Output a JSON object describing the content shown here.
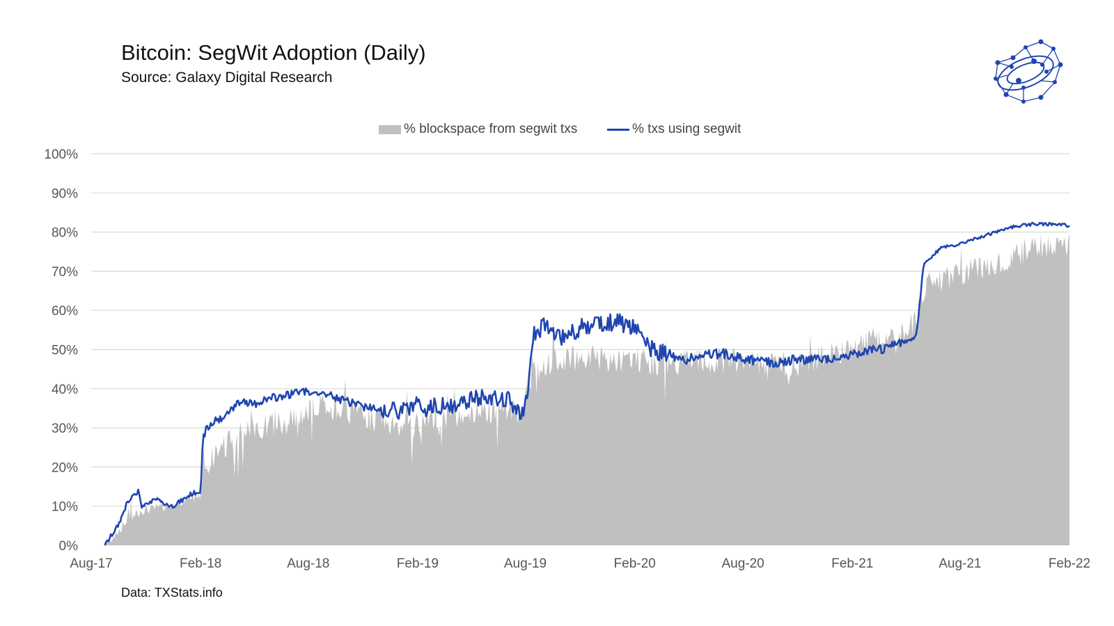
{
  "header": {
    "title": "Bitcoin: SegWit Adoption (Daily)",
    "subtitle": "Source: Galaxy Digital Research"
  },
  "footer": {
    "note": "Data: TXStats.info"
  },
  "logo": {
    "icon": "galaxy-network-logo-icon",
    "color": "#1f45b0"
  },
  "colors": {
    "area": "#c0c0c0",
    "line": "#1f45b0",
    "grid": "#d9d9d9",
    "tick_text": "#555555"
  },
  "chart_data": {
    "type": "area",
    "title": "Bitcoin: SegWit Adoption (Daily)",
    "subtitle": "Source: Galaxy Digital Research",
    "xlabel": "",
    "ylabel": "",
    "ylim": [
      0,
      100
    ],
    "y_unit": "%",
    "y_ticks": [
      "0%",
      "10%",
      "20%",
      "30%",
      "40%",
      "50%",
      "60%",
      "70%",
      "80%",
      "90%",
      "100%"
    ],
    "x_ticks": [
      "Aug-17",
      "Feb-18",
      "Aug-18",
      "Feb-19",
      "Aug-19",
      "Feb-20",
      "Aug-20",
      "Feb-21",
      "Aug-21",
      "Feb-22"
    ],
    "grid": true,
    "legend_position": "top-center",
    "x": [
      "2017-08-24",
      "2017-09-15",
      "2017-10-01",
      "2017-10-20",
      "2017-10-25",
      "2017-11-01",
      "2017-11-20",
      "2017-12-15",
      "2018-01-01",
      "2018-01-15",
      "2018-02-01",
      "2018-02-05",
      "2018-02-10",
      "2018-02-20",
      "2018-03-01",
      "2018-03-15",
      "2018-04-01",
      "2018-04-15",
      "2018-05-01",
      "2018-05-15",
      "2018-06-01",
      "2018-07-01",
      "2018-08-01",
      "2018-08-15",
      "2018-09-01",
      "2018-10-01",
      "2018-11-01",
      "2018-12-01",
      "2019-01-01",
      "2019-01-15",
      "2019-02-01",
      "2019-02-15",
      "2019-03-01",
      "2019-04-01",
      "2019-05-01",
      "2019-06-01",
      "2019-07-01",
      "2019-07-20",
      "2019-08-01",
      "2019-08-15",
      "2019-09-01",
      "2019-10-01",
      "2019-11-01",
      "2019-12-01",
      "2020-01-01",
      "2020-02-01",
      "2020-03-01",
      "2020-04-01",
      "2020-05-01",
      "2020-06-01",
      "2020-07-01",
      "2020-08-01",
      "2020-09-01",
      "2020-10-01",
      "2020-11-01",
      "2020-12-01",
      "2021-01-01",
      "2021-02-01",
      "2021-03-01",
      "2021-04-01",
      "2021-05-01",
      "2021-05-20",
      "2021-06-01",
      "2021-07-01",
      "2021-08-01",
      "2021-09-01",
      "2021-10-01",
      "2021-11-01",
      "2021-12-01",
      "2022-01-01",
      "2022-01-20",
      "2022-02-01"
    ],
    "series": [
      {
        "name": "% blockspace from segwit txs",
        "style": "area",
        "values": [
          0.3,
          3.5,
          6.5,
          8.5,
          9.0,
          9.0,
          9.5,
          10.5,
          11.0,
          12.0,
          13.0,
          18.0,
          20.0,
          22.0,
          24.0,
          26.0,
          27.0,
          28.0,
          29.0,
          30.0,
          31.0,
          32.5,
          34.0,
          35.0,
          35.5,
          35.0,
          33.0,
          32.0,
          31.0,
          30.5,
          31.0,
          32.0,
          33.0,
          33.0,
          34.0,
          34.5,
          35.0,
          34.5,
          36.0,
          45.0,
          46.0,
          47.0,
          48.0,
          48.0,
          47.5,
          47.5,
          46.5,
          46.0,
          46.5,
          47.0,
          47.0,
          47.0,
          46.5,
          46.0,
          46.5,
          48.0,
          49.0,
          51.0,
          52.0,
          53.0,
          55.0,
          58.0,
          66.0,
          67.5,
          69.5,
          71.0,
          72.5,
          74.0,
          76.0,
          77.0,
          77.5,
          77.5
        ]
      },
      {
        "name": "% txs using segwit",
        "style": "line",
        "values": [
          0.0,
          5.0,
          11.0,
          14.0,
          10.0,
          11.0,
          11.5,
          10.0,
          11.5,
          13.0,
          14.0,
          27.0,
          30.0,
          31.5,
          32.0,
          33.0,
          36.0,
          36.5,
          36.0,
          37.0,
          37.5,
          38.5,
          39.5,
          39.0,
          38.5,
          37.0,
          35.5,
          35.0,
          34.0,
          35.0,
          36.0,
          35.0,
          35.5,
          36.0,
          37.0,
          38.0,
          37.5,
          34.0,
          35.0,
          54.0,
          56.0,
          53.0,
          55.5,
          57.0,
          57.0,
          56.0,
          50.0,
          48.5,
          47.5,
          48.5,
          49.0,
          47.5,
          47.0,
          46.5,
          47.5,
          47.5,
          48.0,
          48.5,
          49.5,
          50.5,
          52.0,
          53.5,
          72.0,
          76.0,
          77.0,
          78.5,
          80.0,
          81.5,
          82.0,
          82.0,
          82.0,
          81.5
        ]
      }
    ]
  }
}
